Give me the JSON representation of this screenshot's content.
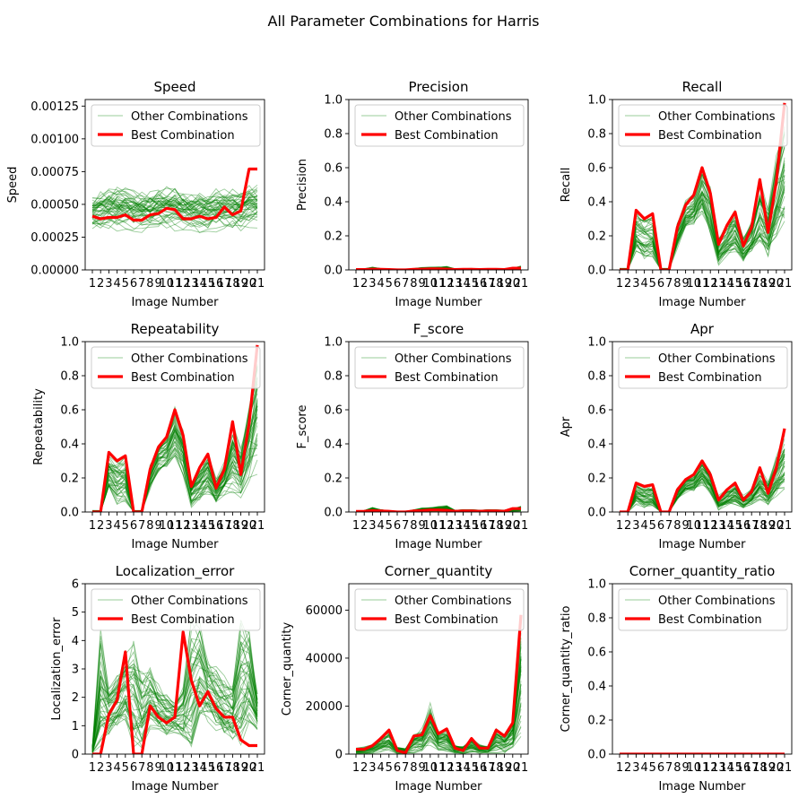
{
  "figure": {
    "title": "All Parameter Combinations for Harris"
  },
  "colors": {
    "other": "#008000",
    "best": "#ff0000"
  },
  "legend_labels": {
    "other": "Other Combinations",
    "best": "Best Combination"
  },
  "chart_data": [
    {
      "type": "line",
      "title": "Speed",
      "xlabel": "Image Number",
      "ylabel": "Speed",
      "x": [
        1,
        2,
        3,
        4,
        5,
        6,
        7,
        8,
        9,
        10,
        11,
        12,
        13,
        14,
        15,
        16,
        17,
        18,
        19,
        20,
        21
      ],
      "ylim": [
        0,
        0.0013
      ],
      "yticks": [
        0,
        0.00025,
        0.0005,
        0.00075,
        0.001,
        0.00125
      ],
      "ytick_labels": [
        "0.00000",
        "0.00025",
        "0.00050",
        "0.00075",
        "0.00100",
        "0.00125"
      ],
      "legend": "upper left",
      "best": [
        0.00041,
        0.00039,
        0.0004,
        0.0004,
        0.00042,
        0.00038,
        0.00038,
        0.00042,
        0.00043,
        0.00047,
        0.00046,
        0.00039,
        0.00039,
        0.00041,
        0.00039,
        0.0004,
        0.00048,
        0.00042,
        0.00045,
        0.00077,
        0.00077
      ],
      "band": {
        "lo": [
          0.00027,
          0.00027,
          0.00028,
          0.00028,
          0.00028,
          0.00027,
          0.00027,
          0.00028,
          0.00028,
          0.00028,
          0.00028,
          0.00027,
          0.00027,
          0.00027,
          0.00027,
          0.00027,
          0.00028,
          0.00028,
          0.00028,
          0.0003,
          0.0003
        ],
        "hi": [
          0.0006,
          0.00062,
          0.00065,
          0.00066,
          0.00066,
          0.00064,
          0.00062,
          0.00063,
          0.00066,
          0.00066,
          0.00065,
          0.00063,
          0.00062,
          0.00062,
          0.00062,
          0.00064,
          0.00064,
          0.00063,
          0.00064,
          0.00068,
          0.00068
        ]
      }
    },
    {
      "type": "line",
      "title": "Precision",
      "xlabel": "Image Number",
      "ylabel": "Precision",
      "x": [
        1,
        2,
        3,
        4,
        5,
        6,
        7,
        8,
        9,
        10,
        11,
        12,
        13,
        14,
        15,
        16,
        17,
        18,
        19,
        20,
        21
      ],
      "ylim": [
        0,
        1
      ],
      "yticks": [
        0,
        0.2,
        0.4,
        0.6,
        0.8,
        1.0
      ],
      "ytick_labels": [
        "0.0",
        "0.2",
        "0.4",
        "0.6",
        "0.8",
        "1.0"
      ],
      "legend": "upper left",
      "best": [
        0.002,
        0.002,
        0.004,
        0.003,
        0.002,
        0,
        0,
        0.003,
        0.004,
        0.006,
        0.006,
        0.005,
        0.002,
        0.003,
        0.003,
        0.002,
        0.003,
        0.003,
        0.002,
        0.01,
        0.01
      ],
      "band": {
        "lo": [
          0,
          0,
          0,
          0,
          0,
          0,
          0,
          0,
          0,
          0,
          0,
          0,
          0,
          0,
          0,
          0,
          0,
          0,
          0,
          0,
          0
        ],
        "hi": [
          0.006,
          0.008,
          0.018,
          0.01,
          0.008,
          0.002,
          0.002,
          0.01,
          0.015,
          0.018,
          0.02,
          0.022,
          0.008,
          0.01,
          0.01,
          0.008,
          0.01,
          0.01,
          0.008,
          0.012,
          0.025
        ]
      }
    },
    {
      "type": "line",
      "title": "Recall",
      "xlabel": "Image Number",
      "ylabel": "Recall",
      "x": [
        1,
        2,
        3,
        4,
        5,
        6,
        7,
        8,
        9,
        10,
        11,
        12,
        13,
        14,
        15,
        16,
        17,
        18,
        19,
        20,
        21
      ],
      "ylim": [
        0,
        1
      ],
      "yticks": [
        0,
        0.2,
        0.4,
        0.6,
        0.8,
        1.0
      ],
      "ytick_labels": [
        "0.0",
        "0.2",
        "0.4",
        "0.6",
        "0.8",
        "1.0"
      ],
      "legend": "upper left",
      "best": [
        0,
        0,
        0.35,
        0.3,
        0.33,
        0,
        0,
        0.25,
        0.38,
        0.44,
        0.6,
        0.45,
        0.15,
        0.26,
        0.34,
        0.14,
        0.25,
        0.53,
        0.22,
        0.52,
        0.98
      ],
      "band": {
        "lo": [
          0,
          0,
          0.08,
          0.04,
          0.04,
          0,
          0,
          0.12,
          0.22,
          0.25,
          0.3,
          0.2,
          0.02,
          0.06,
          0.08,
          0.04,
          0.08,
          0.1,
          0.06,
          0.15,
          0.2
        ],
        "hi": [
          0.01,
          0.01,
          0.36,
          0.32,
          0.34,
          0.01,
          0.01,
          0.3,
          0.42,
          0.46,
          0.64,
          0.5,
          0.2,
          0.28,
          0.36,
          0.2,
          0.3,
          0.55,
          0.4,
          0.7,
          1.0
        ]
      }
    },
    {
      "type": "line",
      "title": "Repeatability",
      "xlabel": "Image Number",
      "ylabel": "Repeatability",
      "x": [
        1,
        2,
        3,
        4,
        5,
        6,
        7,
        8,
        9,
        10,
        11,
        12,
        13,
        14,
        15,
        16,
        17,
        18,
        19,
        20,
        21
      ],
      "ylim": [
        0,
        1
      ],
      "yticks": [
        0,
        0.2,
        0.4,
        0.6,
        0.8,
        1.0
      ],
      "ytick_labels": [
        "0.0",
        "0.2",
        "0.4",
        "0.6",
        "0.8",
        "1.0"
      ],
      "legend": "upper left",
      "best": [
        0,
        0,
        0.35,
        0.3,
        0.33,
        0,
        0,
        0.25,
        0.38,
        0.44,
        0.6,
        0.45,
        0.15,
        0.26,
        0.34,
        0.14,
        0.25,
        0.53,
        0.22,
        0.52,
        0.98
      ],
      "band": {
        "lo": [
          0,
          0,
          0.08,
          0.04,
          0.04,
          0,
          0,
          0.12,
          0.22,
          0.25,
          0.3,
          0.2,
          0.02,
          0.06,
          0.08,
          0.04,
          0.08,
          0.1,
          0.06,
          0.15,
          0.2
        ],
        "hi": [
          0.01,
          0.01,
          0.36,
          0.32,
          0.34,
          0.01,
          0.01,
          0.3,
          0.42,
          0.46,
          0.64,
          0.5,
          0.2,
          0.28,
          0.36,
          0.2,
          0.3,
          0.55,
          0.4,
          0.7,
          1.0
        ]
      }
    },
    {
      "type": "line",
      "title": "F_score",
      "xlabel": "Image Number",
      "ylabel": "F_score",
      "x": [
        1,
        2,
        3,
        4,
        5,
        6,
        7,
        8,
        9,
        10,
        11,
        12,
        13,
        14,
        15,
        16,
        17,
        18,
        19,
        20,
        21
      ],
      "ylim": [
        0,
        1
      ],
      "yticks": [
        0,
        0.2,
        0.4,
        0.6,
        0.8,
        1.0
      ],
      "ytick_labels": [
        "0.0",
        "0.2",
        "0.4",
        "0.6",
        "0.8",
        "1.0"
      ],
      "legend": "upper left",
      "best": [
        0.003,
        0.004,
        0.008,
        0.006,
        0.004,
        0,
        0,
        0.006,
        0.008,
        0.012,
        0.012,
        0.01,
        0.004,
        0.006,
        0.006,
        0.004,
        0.006,
        0.006,
        0.004,
        0.02,
        0.02
      ],
      "band": {
        "lo": [
          0,
          0,
          0,
          0,
          0,
          0,
          0,
          0,
          0,
          0,
          0,
          0,
          0,
          0,
          0,
          0,
          0,
          0,
          0,
          0,
          0
        ],
        "hi": [
          0.008,
          0.01,
          0.03,
          0.015,
          0.01,
          0.003,
          0.003,
          0.015,
          0.025,
          0.03,
          0.035,
          0.04,
          0.012,
          0.015,
          0.015,
          0.012,
          0.015,
          0.015,
          0.012,
          0.02,
          0.035
        ]
      }
    },
    {
      "type": "line",
      "title": "Apr",
      "xlabel": "Image Number",
      "ylabel": "Apr",
      "x": [
        1,
        2,
        3,
        4,
        5,
        6,
        7,
        8,
        9,
        10,
        11,
        12,
        13,
        14,
        15,
        16,
        17,
        18,
        19,
        20,
        21
      ],
      "ylim": [
        0,
        1
      ],
      "yticks": [
        0,
        0.2,
        0.4,
        0.6,
        0.8,
        1.0
      ],
      "ytick_labels": [
        "0.0",
        "0.2",
        "0.4",
        "0.6",
        "0.8",
        "1.0"
      ],
      "legend": "upper left",
      "best": [
        0,
        0,
        0.17,
        0.15,
        0.16,
        0,
        0,
        0.13,
        0.19,
        0.22,
        0.3,
        0.22,
        0.07,
        0.13,
        0.17,
        0.07,
        0.12,
        0.26,
        0.11,
        0.26,
        0.49
      ],
      "band": {
        "lo": [
          0,
          0,
          0.04,
          0.02,
          0.02,
          0,
          0,
          0.06,
          0.11,
          0.12,
          0.15,
          0.1,
          0.01,
          0.03,
          0.04,
          0.02,
          0.04,
          0.05,
          0.03,
          0.07,
          0.1
        ],
        "hi": [
          0.005,
          0.005,
          0.18,
          0.16,
          0.17,
          0.005,
          0.005,
          0.15,
          0.21,
          0.23,
          0.32,
          0.25,
          0.1,
          0.14,
          0.18,
          0.1,
          0.15,
          0.28,
          0.2,
          0.35,
          0.5
        ]
      }
    },
    {
      "type": "line",
      "title": "Localization_error",
      "xlabel": "Image Number",
      "ylabel": "Localization_error",
      "x": [
        1,
        2,
        3,
        4,
        5,
        6,
        7,
        8,
        9,
        10,
        11,
        12,
        13,
        14,
        15,
        16,
        17,
        18,
        19,
        20,
        21
      ],
      "ylim": [
        0,
        6
      ],
      "yticks": [
        0,
        1,
        2,
        3,
        4,
        5,
        6
      ],
      "ytick_labels": [
        "0",
        "1",
        "2",
        "3",
        "4",
        "5",
        "6"
      ],
      "legend": "upper left",
      "best": [
        0,
        0,
        1.4,
        1.9,
        3.6,
        0,
        0,
        1.7,
        1.3,
        1.1,
        1.3,
        4.3,
        2.6,
        1.7,
        2.2,
        1.6,
        1.3,
        1.3,
        0.5,
        0.3,
        0.3
      ],
      "band": {
        "lo": [
          0,
          0,
          0.6,
          0.8,
          1.0,
          0,
          0,
          0.8,
          0.7,
          0.6,
          0.7,
          0.5,
          0.0,
          1.0,
          1.0,
          0.8,
          0.6,
          0.4,
          0.2,
          0.8,
          0.8
        ],
        "hi": [
          0.3,
          4.5,
          2.6,
          3.0,
          3.6,
          4.3,
          3.2,
          3.2,
          2.5,
          2.3,
          2.0,
          2.6,
          5.1,
          5.0,
          3.6,
          3.2,
          2.8,
          2.6,
          5.1,
          4.8,
          2.2
        ]
      }
    },
    {
      "type": "line",
      "title": "Corner_quantity",
      "xlabel": "Image Number",
      "ylabel": "Corner_quantity",
      "x": [
        1,
        2,
        3,
        4,
        5,
        6,
        7,
        8,
        9,
        10,
        11,
        12,
        13,
        14,
        15,
        16,
        17,
        18,
        19,
        20,
        21
      ],
      "ylim": [
        0,
        71000
      ],
      "yticks": [
        0,
        20000,
        40000,
        60000
      ],
      "ytick_labels": [
        "0",
        "20000",
        "40000",
        "60000"
      ],
      "legend": "upper left",
      "best": [
        2000,
        2000,
        3500,
        6500,
        10000,
        1500,
        500,
        7500,
        8000,
        16000,
        8500,
        10500,
        2500,
        1500,
        6500,
        2500,
        2500,
        10000,
        7500,
        13000,
        58000
      ],
      "band": {
        "lo": [
          0,
          0,
          0,
          0,
          0,
          0,
          0,
          0,
          0,
          0,
          0,
          0,
          0,
          0,
          0,
          0,
          0,
          0,
          0,
          0,
          0
        ],
        "hi": [
          2500,
          3000,
          4500,
          8000,
          10500,
          3000,
          2500,
          9000,
          11000,
          22000,
          10000,
          11000,
          4000,
          3500,
          7000,
          4000,
          3500,
          11000,
          9000,
          15000,
          58000
        ]
      }
    },
    {
      "type": "line",
      "title": "Corner_quantity_ratio",
      "xlabel": "Image Number",
      "ylabel": "Corner_quantity_ratio",
      "x": [
        1,
        2,
        3,
        4,
        5,
        6,
        7,
        8,
        9,
        10,
        11,
        12,
        13,
        14,
        15,
        16,
        17,
        18,
        19,
        20,
        21
      ],
      "ylim": [
        0,
        1
      ],
      "yticks": [
        0,
        0.2,
        0.4,
        0.6,
        0.8,
        1.0
      ],
      "ytick_labels": [
        "0.0",
        "0.2",
        "0.4",
        "0.6",
        "0.8",
        "1.0"
      ],
      "legend": "upper left",
      "best": [
        0,
        0,
        0,
        0,
        0,
        0,
        0,
        0,
        0,
        0,
        0,
        0,
        0,
        0,
        0,
        0,
        0,
        0,
        0,
        0,
        0
      ],
      "band": {
        "lo": [
          0,
          0,
          0,
          0,
          0,
          0,
          0,
          0,
          0,
          0,
          0,
          0,
          0,
          0,
          0,
          0,
          0,
          0,
          0,
          0,
          0
        ],
        "hi": [
          0.002,
          0.002,
          0.003,
          0.003,
          0.003,
          0.002,
          0.002,
          0.003,
          0.003,
          0.004,
          0.003,
          0.003,
          0.002,
          0.002,
          0.003,
          0.002,
          0.002,
          0.003,
          0.003,
          0.003,
          0.004
        ]
      }
    }
  ]
}
